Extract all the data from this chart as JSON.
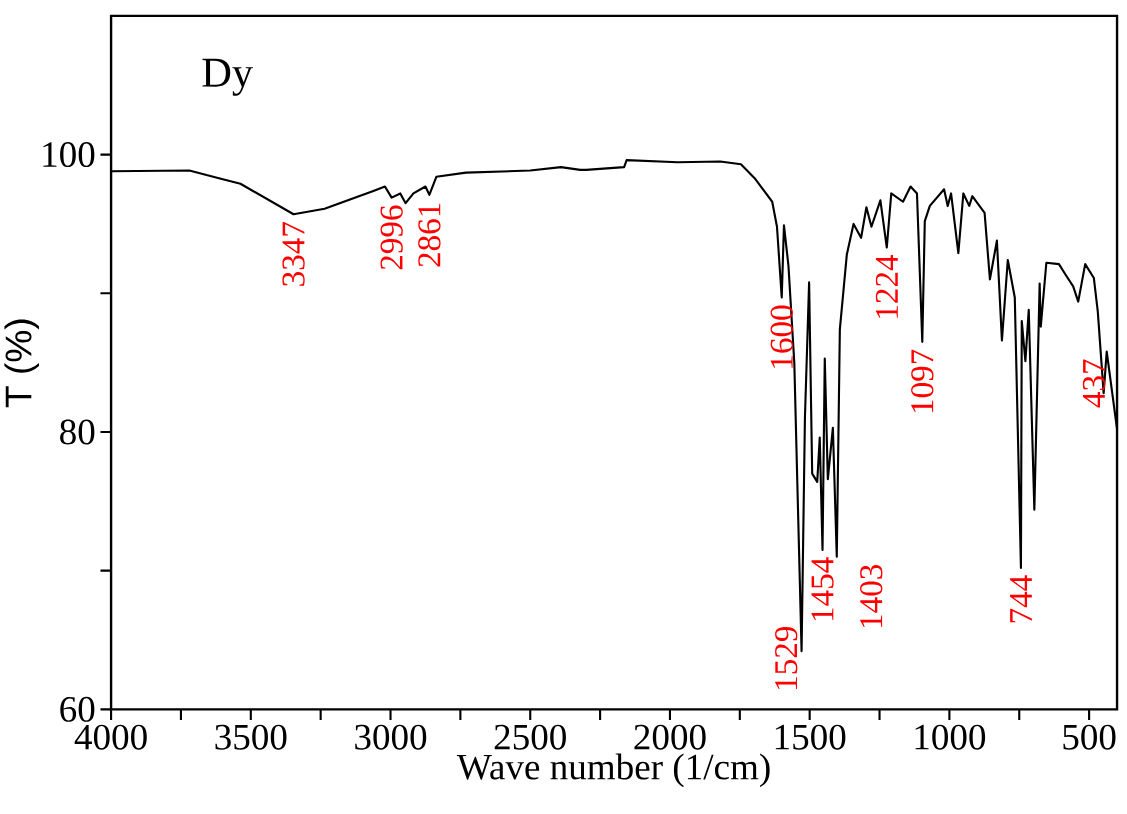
{
  "chart_data": {
    "type": "line",
    "title": "Dy",
    "xlabel": "Wave number (1/cm)",
    "ylabel": "T (%)",
    "xlim": [
      4000,
      400
    ],
    "ylim": [
      60,
      110
    ],
    "xticks": [
      4000,
      {
        "value": 3750,
        "label": null
      },
      3500,
      {
        "value": 3250,
        "label": null
      },
      3000,
      {
        "value": 2750,
        "label": null
      },
      2500,
      {
        "value": 2250,
        "label": null
      },
      2000,
      {
        "value": 1750,
        "label": null
      },
      1500,
      {
        "value": 1250,
        "label": null
      },
      1000,
      {
        "value": 750,
        "label": null
      },
      500
    ],
    "yticks": [
      60,
      {
        "value": 70,
        "label": null
      },
      80,
      {
        "value": 90,
        "label": null
      },
      100
    ],
    "grid": false,
    "marker": "none",
    "line_style": "solid",
    "series": [
      {
        "color": "#000000",
        "x": [
          4000,
          3720,
          3614,
          3537,
          3347,
          3236,
          3059,
          3020,
          2996,
          2965,
          2946,
          2918,
          2875,
          2861,
          2836,
          2730,
          2500,
          2390,
          2321,
          2300,
          2164,
          2155,
          1972,
          1820,
          1746,
          1697,
          1634,
          1617,
          1600,
          1592,
          1576,
          1555,
          1529,
          1517,
          1502,
          1491,
          1473,
          1464,
          1454,
          1446,
          1435,
          1417,
          1403,
          1392,
          1367,
          1343,
          1316,
          1297,
          1279,
          1247,
          1224,
          1208,
          1166,
          1139,
          1116,
          1097,
          1088,
          1070,
          1019,
          1006,
          994,
          968,
          950,
          929,
          918,
          874,
          855,
          830,
          812,
          791,
          766,
          744,
          741,
          728,
          716,
          696,
          677,
          673,
          653,
          608,
          583,
          557,
          539,
          514,
          483,
          469,
          448,
          437,
          400
        ],
        "values": [
          98.8,
          98.85,
          98.3,
          97.9,
          95.7,
          96.1,
          97.4,
          97.7,
          96.9,
          97.2,
          96.5,
          97.2,
          97.7,
          97.1,
          98.4,
          98.7,
          98.85,
          99.1,
          98.9,
          98.9,
          99.1,
          99.6,
          99.45,
          99.5,
          99.3,
          98.3,
          96.6,
          94.8,
          89.7,
          94.9,
          92.0,
          85.0,
          64.2,
          81.0,
          90.8,
          77.0,
          76.4,
          79.6,
          71.5,
          85.3,
          76.6,
          80.3,
          71.0,
          87.4,
          92.8,
          95.0,
          94.0,
          96.2,
          94.8,
          96.7,
          93.3,
          97.2,
          96.6,
          97.7,
          97.2,
          86.5,
          95.2,
          96.3,
          97.5,
          96.3,
          97.2,
          92.9,
          97.2,
          96.3,
          97.0,
          95.8,
          91.0,
          93.8,
          86.6,
          92.4,
          89.7,
          70.2,
          88.0,
          85.1,
          88.8,
          74.4,
          90.7,
          87.6,
          92.2,
          92.1,
          91.3,
          90.5,
          89.4,
          92.1,
          91.1,
          88.7,
          82.8,
          85.8,
          80.2
        ]
      }
    ],
    "annotations": [
      {
        "text": "3347",
        "x": 3347,
        "y": 95.7
      },
      {
        "text": "2996",
        "x": 2996,
        "y": 96.9
      },
      {
        "text": "2861",
        "x": 2861,
        "y": 97.1
      },
      {
        "text": "1600",
        "x": 1600,
        "y": 89.7
      },
      {
        "text": "1529",
        "x": 1529,
        "y": 64.2
      },
      {
        "text": "1454",
        "x": 1454,
        "y": 71.5
      },
      {
        "text": "1403",
        "x": 1403,
        "y": 71.0
      },
      {
        "text": "1224",
        "x": 1224,
        "y": 93.3
      },
      {
        "text": "1097",
        "x": 1097,
        "y": 86.5
      },
      {
        "text": "744",
        "x": 744,
        "y": 70.2
      },
      {
        "text": "437",
        "x": 437,
        "y": 85.8
      }
    ]
  }
}
